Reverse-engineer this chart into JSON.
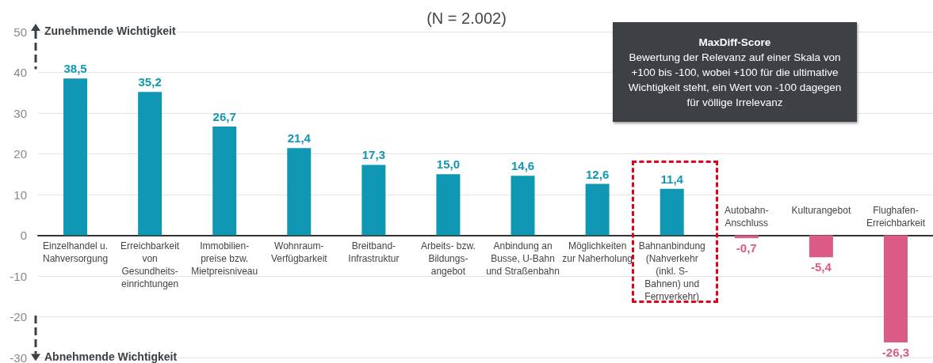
{
  "chart_data": {
    "type": "bar",
    "title": "(N = 2.002)",
    "categories": [
      "Einzelhandel u. Nahversorgung",
      "Erreichbarkeit von Gesundheits-einrichtungen",
      "Immobilien-preise bzw. Mietpreisniveau",
      "Wohnraum-Verfügbarkeit",
      "Breitband-Infrastruktur",
      "Arbeits- bzw. Bildungs-angebot",
      "Anbindung an Busse, U-Bahn und Straßenbahn",
      "Möglichkeiten zur Naherholung",
      "Bahnanbindung (Nahverkehr (inkl. S-Bahnen) und Fernverkehr)",
      "Autobahn-Anschluss",
      "Kulturangebot",
      "Flughafen-Erreichbarkeit"
    ],
    "values": [
      38.5,
      35.2,
      26.7,
      21.4,
      17.3,
      15.0,
      14.6,
      12.6,
      11.4,
      -0.7,
      -5.4,
      -26.3
    ],
    "value_labels": [
      "38,5",
      "35,2",
      "26,7",
      "21,4",
      "17,3",
      "15,0",
      "14,6",
      "12,6",
      "11,4",
      "-0,7",
      "-5,4",
      "-26,3"
    ],
    "colors": [
      "#0f97b3",
      "#0f97b3",
      "#0f97b3",
      "#0f97b3",
      "#0f97b3",
      "#0f97b3",
      "#0f97b3",
      "#0f97b3",
      "#0f97b3",
      "#d95b86",
      "#d95b86",
      "#d95b86"
    ],
    "ylim": [
      -30,
      50
    ],
    "yticks": [
      -30,
      -20,
      -10,
      0,
      10,
      20,
      30,
      40,
      50
    ],
    "grid": "y",
    "annotations": [
      "Zunehmende Wichtigkeit",
      "Abnehmende Wichtigkeit",
      "MaxDiff-Score",
      "Bewertung der Relevanz auf einer Skala von +100 bis -100, wobei +100 für die ultimative Wichtigkeit steht, ein Wert von -100 dagegen für völlige Irrelevanz"
    ]
  }
}
